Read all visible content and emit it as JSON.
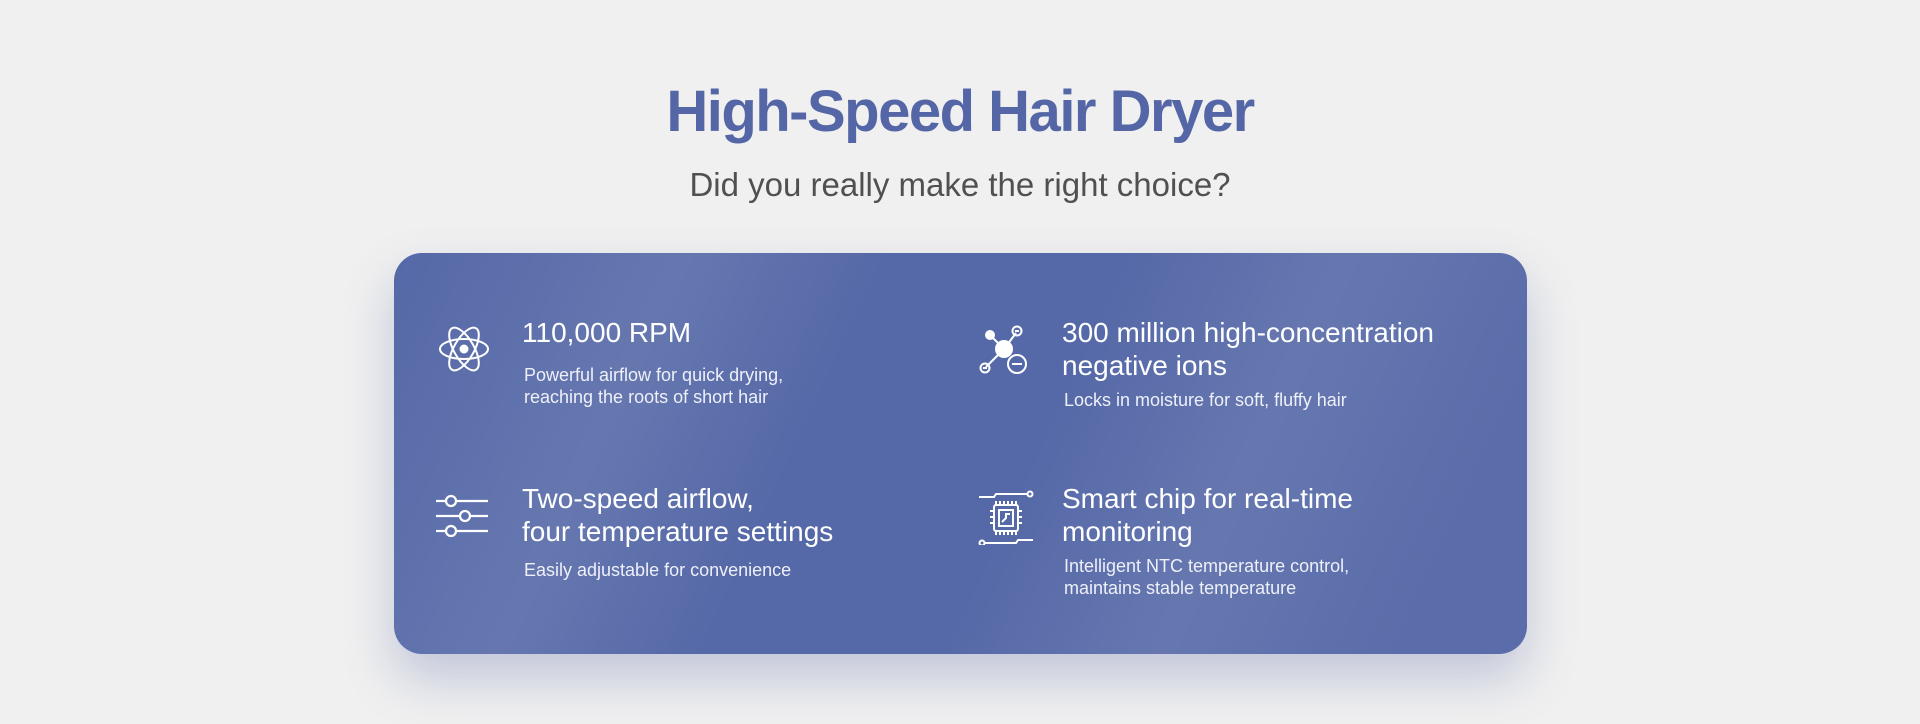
{
  "header": {
    "title": "High-Speed Hair Dryer",
    "subtitle": "Did you really make the right choice?"
  },
  "features": [
    {
      "icon": "atom-icon",
      "title_lines": [
        "110,000 RPM"
      ],
      "desc_lines": [
        "Powerful airflow for quick drying,",
        "reaching the roots of short hair"
      ]
    },
    {
      "icon": "negative-ion-molecule-icon",
      "title_lines": [
        "300 million high-concentration",
        "negative ions"
      ],
      "desc_lines": [
        "Locks in moisture for soft, fluffy hair"
      ]
    },
    {
      "icon": "sliders-icon",
      "title_lines": [
        "Two-speed airflow,",
        "four temperature settings"
      ],
      "desc_lines": [
        "Easily adjustable for convenience"
      ]
    },
    {
      "icon": "chip-icon",
      "title_lines": [
        "Smart chip for real-time",
        "monitoring"
      ],
      "desc_lines": [
        "Intelligent NTC temperature control,",
        "maintains stable temperature"
      ]
    }
  ],
  "colors": {
    "title": "#5466a6",
    "card": "#5568a7",
    "subtitle": "#505050"
  }
}
